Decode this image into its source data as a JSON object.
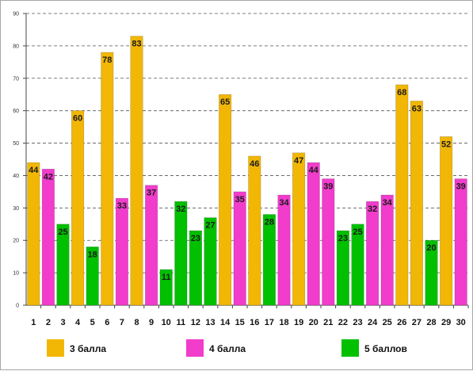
{
  "chart_data": {
    "type": "bar",
    "title": "",
    "xlabel": "",
    "ylabel": "",
    "ylim": [
      0,
      90
    ],
    "y_ticks": [
      0,
      10,
      20,
      30,
      40,
      50,
      60,
      70,
      80,
      90
    ],
    "grid": "horizontal dashed",
    "legend_position": "bottom",
    "categories": [
      "1",
      "2",
      "3",
      "4",
      "5",
      "6",
      "7",
      "8",
      "9",
      "10",
      "11",
      "12",
      "13",
      "14",
      "15",
      "16",
      "17",
      "18",
      "19",
      "20",
      "21",
      "22",
      "23",
      "24",
      "25",
      "26",
      "27",
      "28",
      "29",
      "30"
    ],
    "values": [
      44,
      42,
      25,
      60,
      18,
      78,
      33,
      83,
      37,
      11,
      32,
      23,
      27,
      65,
      35,
      46,
      28,
      34,
      47,
      44,
      39,
      23,
      25,
      32,
      34,
      68,
      63,
      20,
      52,
      39
    ],
    "bar_series": [
      0,
      1,
      2,
      0,
      2,
      0,
      1,
      0,
      1,
      2,
      2,
      2,
      2,
      0,
      1,
      0,
      2,
      1,
      0,
      1,
      1,
      2,
      2,
      1,
      1,
      0,
      0,
      2,
      0,
      1
    ],
    "series": [
      {
        "name": "3 балла",
        "color": "#f2b705"
      },
      {
        "name": "4 балла",
        "color": "#f13ccc"
      },
      {
        "name": "5 баллов",
        "color": "#00c000"
      }
    ]
  }
}
